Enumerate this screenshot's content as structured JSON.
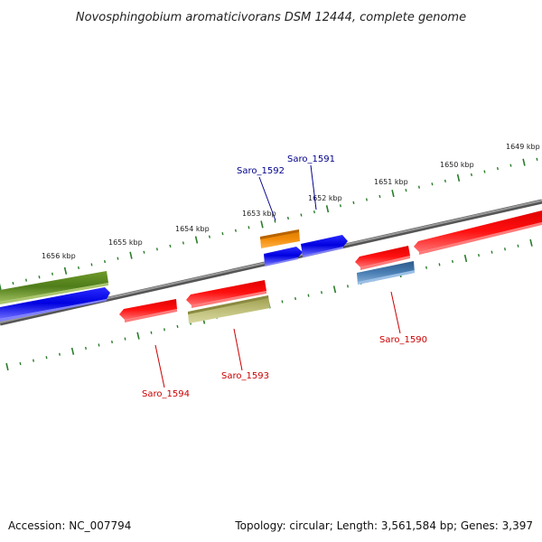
{
  "title": "Novosphingobium aromaticivorans DSM 12444, complete genome",
  "footer": {
    "accession": "Accession: NC_007794",
    "topology": "Topology: circular; Length: 3,561,584 bp; Genes: 3,397"
  },
  "colors": {
    "forward_label": "#00008b",
    "reverse_label": "#cc0000",
    "tick": "#2a7d2a",
    "backbone": "#808080"
  },
  "ticks": [
    {
      "label": "1656 kbp"
    },
    {
      "label": "1655 kbp"
    },
    {
      "label": "1654 kbp"
    },
    {
      "label": "1653 kbp"
    },
    {
      "label": "1652 kbp"
    },
    {
      "label": "1651 kbp"
    },
    {
      "label": "1650 kbp"
    },
    {
      "label": "1649 kbp"
    }
  ],
  "features": [
    {
      "color": "olive-green",
      "strand": "forward"
    },
    {
      "color": "blue",
      "strand": "forward"
    },
    {
      "color": "orange",
      "strand": "forward"
    },
    {
      "color": "blue",
      "strand": "forward"
    },
    {
      "color": "blue",
      "strand": "forward"
    },
    {
      "color": "red",
      "strand": "reverse"
    },
    {
      "color": "red",
      "strand": "reverse"
    },
    {
      "color": "khaki",
      "strand": "reverse"
    },
    {
      "color": "red",
      "strand": "reverse"
    },
    {
      "color": "steel-blue",
      "strand": "reverse"
    },
    {
      "color": "red",
      "strand": "reverse"
    }
  ],
  "labels": [
    {
      "text": "Saro_1592",
      "strand": "forward"
    },
    {
      "text": "Saro_1591",
      "strand": "forward"
    },
    {
      "text": "Saro_1594",
      "strand": "reverse"
    },
    {
      "text": "Saro_1593",
      "strand": "reverse"
    },
    {
      "text": "Saro_1590",
      "strand": "reverse"
    }
  ]
}
